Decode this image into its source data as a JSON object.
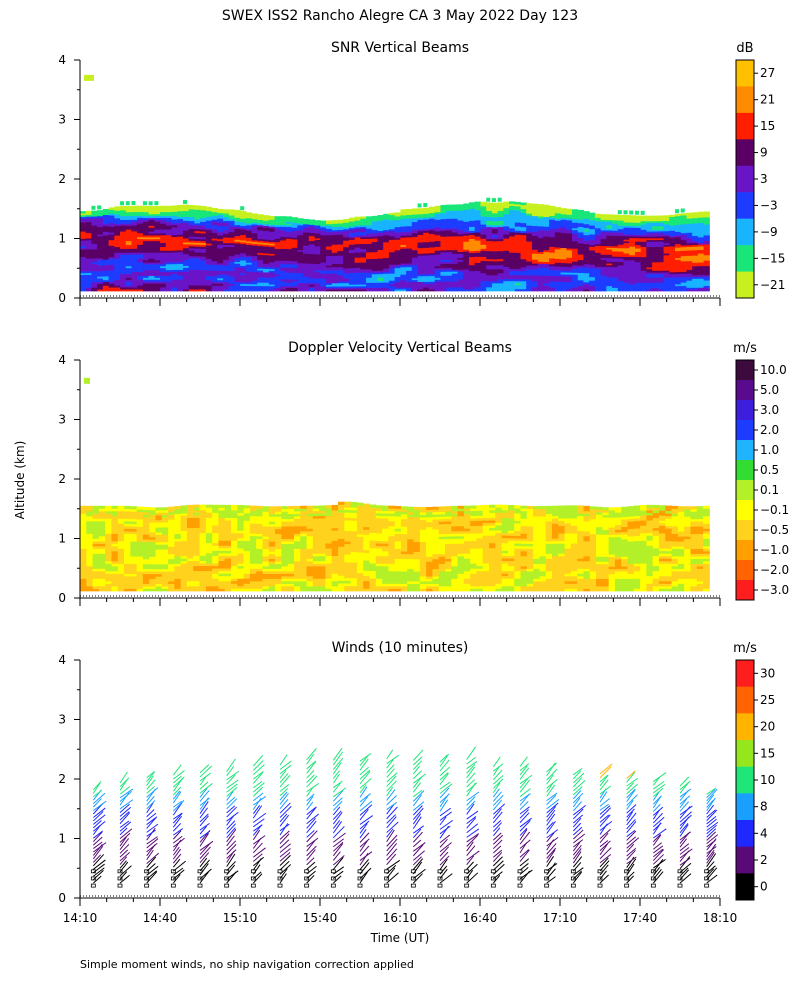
{
  "figure_title": "SWEX ISS2 Rancho Alegre CA   3 May 2022 Day 123",
  "ylabel": "Altitude (km)",
  "xlabel": "Time (UT)",
  "footnote": "Simple moment winds, no ship navigation correction applied",
  "chart_data": [
    {
      "type": "heatmap",
      "title": "SNR Vertical Beams",
      "x_range": [
        "14:10",
        "18:10"
      ],
      "y_range": [
        0,
        4
      ],
      "y_ticks": [
        "0",
        "1",
        "2",
        "3",
        "4"
      ],
      "colorbar": {
        "unit": "dB",
        "labels": [
          "27",
          "21",
          "15",
          "9",
          "3",
          "−3",
          "−9",
          "−15",
          "−21"
        ],
        "colors": [
          "#ffc000",
          "#ff8c00",
          "#ff1e00",
          "#5a0064",
          "#6a14c8",
          "#1e3cff",
          "#19b4ff",
          "#19e678",
          "#c8f01e"
        ]
      }
    },
    {
      "type": "heatmap",
      "title": "Doppler Velocity Vertical Beams",
      "x_range": [
        "14:10",
        "18:10"
      ],
      "y_range": [
        0,
        4
      ],
      "y_ticks": [
        "0",
        "1",
        "2",
        "3",
        "4"
      ],
      "colorbar": {
        "unit": "m/s",
        "labels": [
          "10.0",
          "5.0",
          "3.0",
          "2.0",
          "1.0",
          "0.5",
          "0.1",
          "−0.1",
          "−0.5",
          "−1.0",
          "−2.0",
          "−3.0"
        ],
        "colors": [
          "#3c0a3c",
          "#5a0a8c",
          "#3c1edc",
          "#1e3cff",
          "#1eb4ff",
          "#32dc32",
          "#b4f028",
          "#ffff00",
          "#ffd21e",
          "#ffa000",
          "#ff6400",
          "#ff1e1e"
        ]
      }
    },
    {
      "type": "scatter",
      "title": "Winds (10 minutes)",
      "x_range": [
        "14:10",
        "18:10"
      ],
      "x_ticks": [
        "14:10",
        "14:40",
        "15:10",
        "15:40",
        "16:10",
        "16:40",
        "17:10",
        "17:40",
        "18:10"
      ],
      "y_range": [
        0,
        4
      ],
      "y_ticks": [
        "0",
        "1",
        "2",
        "3",
        "4"
      ],
      "colorbar": {
        "unit": "m/s",
        "labels": [
          "30",
          "25",
          "20",
          "15",
          "10",
          "8",
          "4",
          "2",
          "0"
        ],
        "colors": [
          "#ff1e1e",
          "#ff6400",
          "#ffb400",
          "#96e61e",
          "#1ee678",
          "#19a0ff",
          "#1e28ff",
          "#5a0a78",
          "#000000"
        ]
      }
    }
  ]
}
